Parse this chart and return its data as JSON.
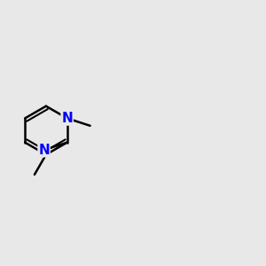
{
  "bg_color": "#e8e8e8",
  "bond_color": "#000000",
  "n_color": "#0000ff",
  "s_color": "#cccc00",
  "o_color": "#ff0000",
  "bond_width": 1.8,
  "font_size": 11
}
